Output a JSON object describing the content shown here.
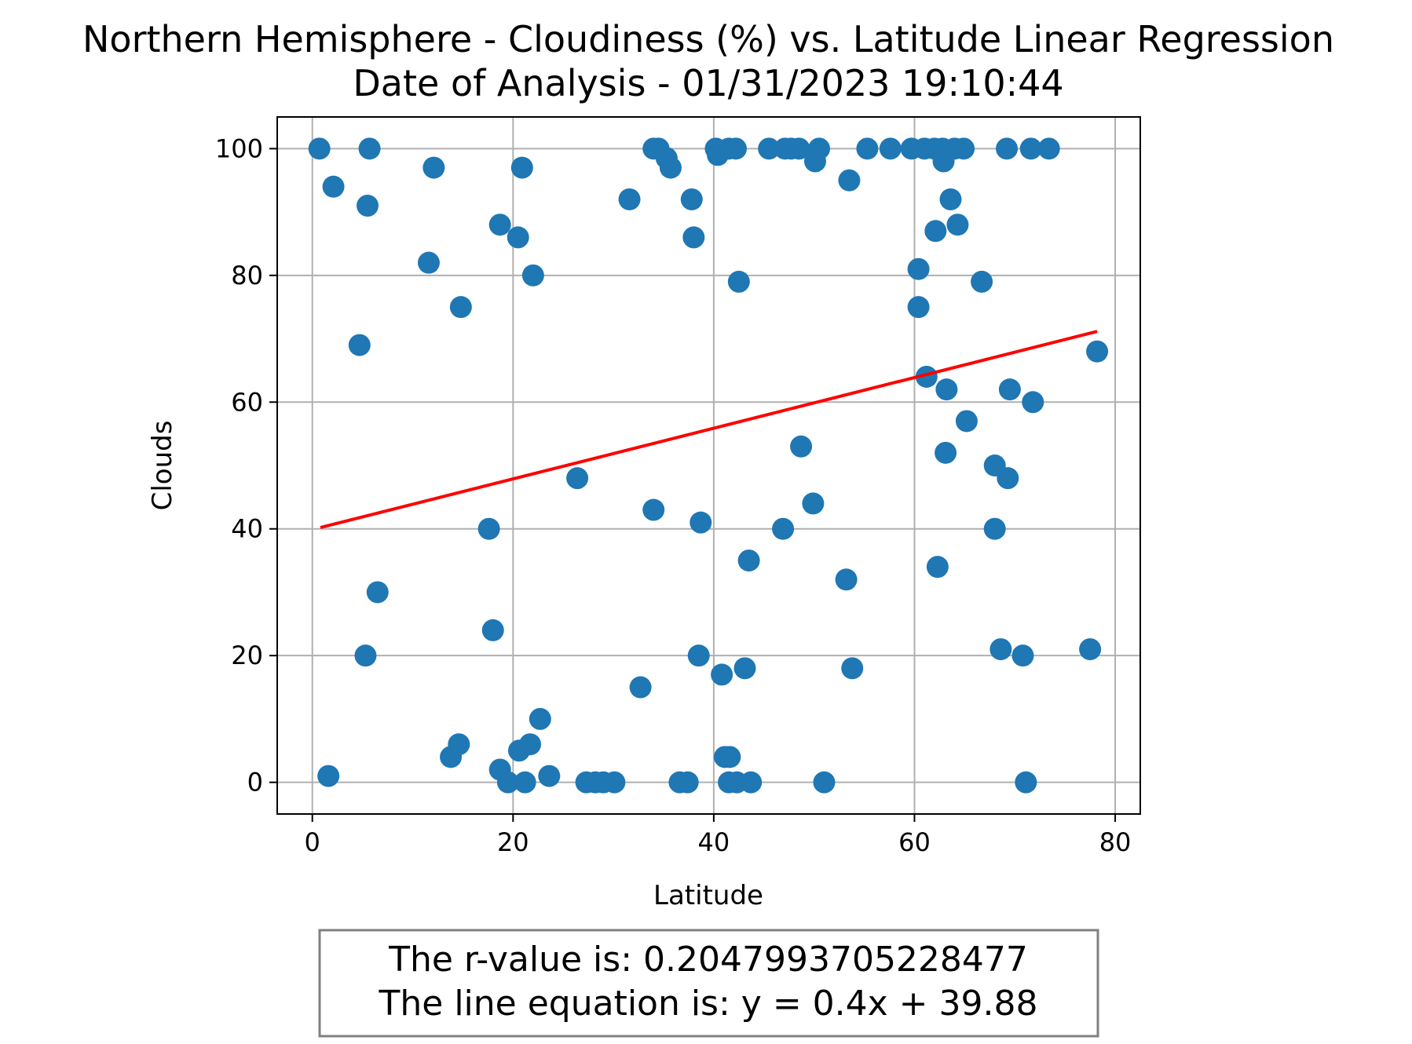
{
  "chart_data": {
    "type": "scatter",
    "title": "Northern Hemisphere - Cloudiness (%) vs. Latitude Linear Regression",
    "subtitle": "Date of Analysis - 01/31/2023 19:10:44",
    "xlabel": "Latitude",
    "ylabel": "Clouds",
    "xlim": [
      -3.5,
      82.5
    ],
    "ylim": [
      -5,
      105
    ],
    "xticks": [
      0,
      20,
      40,
      60,
      80
    ],
    "yticks": [
      0,
      20,
      40,
      60,
      80,
      100
    ],
    "grid": true,
    "point_color": "#1f77b4",
    "line_color": "#ff0000",
    "regression": {
      "slope": 0.4,
      "intercept": 39.88,
      "x_range": [
        0.8,
        78.2
      ]
    },
    "annotation": [
      "The r-value is: 0.2047993705228477",
      "The line equation is: y = 0.4x + 39.88"
    ],
    "points": [
      [
        0.7,
        100
      ],
      [
        2.1,
        94
      ],
      [
        5.7,
        100
      ],
      [
        5.5,
        91
      ],
      [
        1.6,
        1
      ],
      [
        4.7,
        69
      ],
      [
        5.3,
        20
      ],
      [
        6.5,
        30
      ],
      [
        11.6,
        82
      ],
      [
        12.1,
        97
      ],
      [
        14.8,
        75
      ],
      [
        13.8,
        4
      ],
      [
        14.6,
        6
      ],
      [
        17.6,
        40
      ],
      [
        18.0,
        24
      ],
      [
        18.7,
        88
      ],
      [
        20.5,
        86
      ],
      [
        20.9,
        97
      ],
      [
        22.0,
        80
      ],
      [
        22.7,
        10
      ],
      [
        18.7,
        2
      ],
      [
        19.5,
        0
      ],
      [
        20.6,
        5
      ],
      [
        21.2,
        0
      ],
      [
        21.7,
        6
      ],
      [
        23.6,
        1
      ],
      [
        26.4,
        48
      ],
      [
        27.3,
        0
      ],
      [
        28.2,
        0
      ],
      [
        29.0,
        0
      ],
      [
        30.1,
        0
      ],
      [
        31.6,
        92
      ],
      [
        32.7,
        15
      ],
      [
        34.0,
        43
      ],
      [
        34.0,
        100
      ],
      [
        34.5,
        100
      ],
      [
        35.3,
        98.5
      ],
      [
        35.7,
        97
      ],
      [
        36.6,
        0
      ],
      [
        37.4,
        0
      ],
      [
        37.8,
        92
      ],
      [
        38.0,
        86
      ],
      [
        38.5,
        20
      ],
      [
        38.7,
        41
      ],
      [
        40.2,
        100
      ],
      [
        40.4,
        99
      ],
      [
        40.8,
        17
      ],
      [
        41.1,
        4
      ],
      [
        41.5,
        0
      ],
      [
        41.6,
        4
      ],
      [
        41.5,
        100
      ],
      [
        42.2,
        100
      ],
      [
        42.5,
        79
      ],
      [
        42.3,
        0
      ],
      [
        43.1,
        18
      ],
      [
        43.5,
        35
      ],
      [
        43.7,
        0
      ],
      [
        45.5,
        100
      ],
      [
        46.9,
        40
      ],
      [
        47.1,
        100
      ],
      [
        47.7,
        100
      ],
      [
        48.5,
        100
      ],
      [
        48.7,
        53
      ],
      [
        49.9,
        44
      ],
      [
        50.1,
        98
      ],
      [
        50.5,
        100
      ],
      [
        51.0,
        0
      ],
      [
        53.2,
        32
      ],
      [
        53.5,
        95
      ],
      [
        53.8,
        18
      ],
      [
        55.3,
        100
      ],
      [
        57.6,
        100
      ],
      [
        59.7,
        100
      ],
      [
        60.4,
        81
      ],
      [
        60.4,
        75
      ],
      [
        61.0,
        100
      ],
      [
        61.2,
        64
      ],
      [
        62.0,
        100
      ],
      [
        62.1,
        87
      ],
      [
        62.3,
        34
      ],
      [
        62.9,
        98
      ],
      [
        62.8,
        100
      ],
      [
        63.2,
        62
      ],
      [
        63.1,
        52
      ],
      [
        63.6,
        92
      ],
      [
        64.0,
        100
      ],
      [
        64.3,
        88
      ],
      [
        64.9,
        100
      ],
      [
        65.2,
        57
      ],
      [
        66.7,
        79
      ],
      [
        68.0,
        50
      ],
      [
        68.0,
        40
      ],
      [
        68.6,
        21
      ],
      [
        69.2,
        100
      ],
      [
        69.3,
        48
      ],
      [
        69.5,
        62
      ],
      [
        70.8,
        20
      ],
      [
        71.1,
        0
      ],
      [
        71.6,
        100
      ],
      [
        71.8,
        60
      ],
      [
        73.4,
        100
      ],
      [
        77.5,
        21
      ],
      [
        78.2,
        68
      ]
    ]
  }
}
